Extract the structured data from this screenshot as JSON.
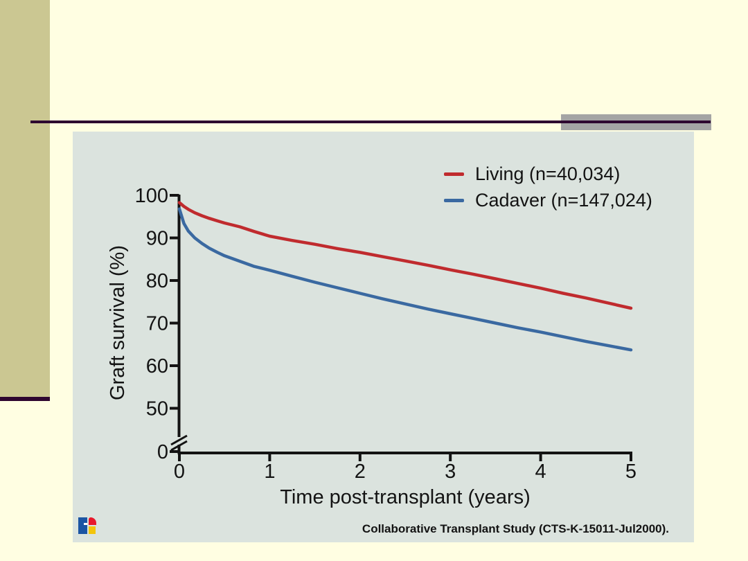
{
  "slide": {
    "background": "#fffee2",
    "sidebar_color": "#cbc792",
    "rule_color": "#2e0630",
    "rule_accent_color": "#a4a4a4",
    "panel_color": "#dbe3de"
  },
  "icons": {
    "logo": "publisher-color-logo"
  },
  "footer": {
    "attribution": "Collaborative Transplant Study (CTS-K-15011-Jul2000)."
  },
  "chart_data": {
    "type": "line",
    "title": "",
    "xlabel": "Time post-transplant (years)",
    "ylabel": "Graft survival (%)",
    "x_ticks": [
      "0",
      "1",
      "2",
      "3",
      "4",
      "5"
    ],
    "y_ticks": [
      "100",
      "90",
      "80",
      "70",
      "60",
      "50",
      "0"
    ],
    "y_axis_break": true,
    "xlim": [
      0,
      5
    ],
    "ylim_displayed": [
      50,
      100
    ],
    "grid": false,
    "legend_position": "top-right",
    "axis_color": "#131313",
    "series": [
      {
        "name": "Living (n=40,034)",
        "color": "#c02b2e",
        "x": [
          0,
          0.05,
          0.1,
          0.17,
          0.25,
          0.33,
          0.42,
          0.5,
          0.67,
          0.83,
          1,
          1.25,
          1.5,
          1.75,
          2,
          2.25,
          2.5,
          2.75,
          3,
          3.25,
          3.5,
          3.75,
          4,
          4.25,
          4.5,
          4.75,
          5
        ],
        "values": [
          98.3,
          97.4,
          96.7,
          95.9,
          95.2,
          94.6,
          94.0,
          93.5,
          92.6,
          91.5,
          90.4,
          89.4,
          88.5,
          87.5,
          86.6,
          85.6,
          84.6,
          83.6,
          82.5,
          81.5,
          80.4,
          79.3,
          78.2,
          77.0,
          75.9,
          74.7,
          73.5
        ]
      },
      {
        "name": "Cadaver (n=147,024)",
        "color": "#3a69a1",
        "x": [
          0,
          0.05,
          0.1,
          0.17,
          0.25,
          0.33,
          0.42,
          0.5,
          0.67,
          0.83,
          1,
          1.25,
          1.5,
          1.75,
          2,
          2.25,
          2.5,
          2.75,
          3,
          3.25,
          3.5,
          3.75,
          4,
          4.25,
          4.5,
          4.75,
          5
        ],
        "values": [
          96.8,
          93.4,
          91.6,
          90.0,
          88.7,
          87.6,
          86.6,
          85.8,
          84.5,
          83.3,
          82.4,
          81.0,
          79.6,
          78.3,
          77.0,
          75.7,
          74.5,
          73.3,
          72.2,
          71.1,
          70.0,
          68.9,
          67.9,
          66.8,
          65.7,
          64.7,
          63.7
        ]
      }
    ]
  }
}
